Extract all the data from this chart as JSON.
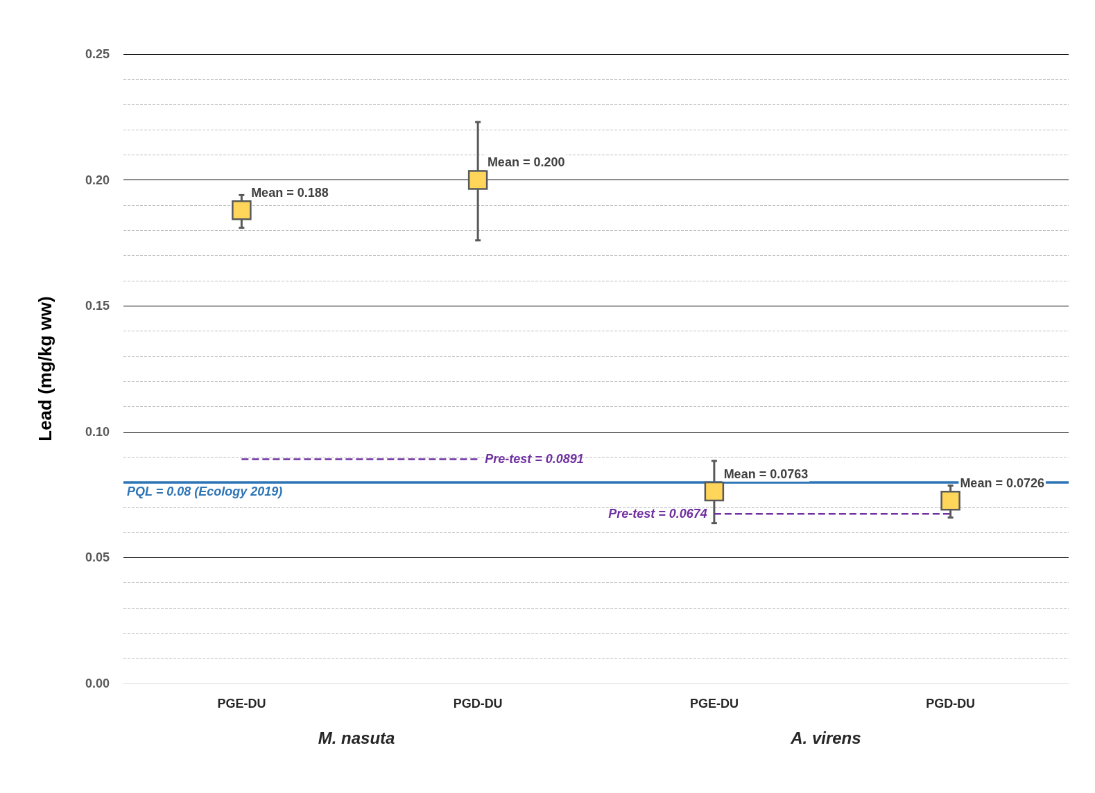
{
  "chart_data": {
    "type": "scatter",
    "ylabel": "Lead (mg/kg ww)",
    "categories": [
      "PGE-DU",
      "PGD-DU",
      "PGE-DU",
      "PGD-DU"
    ],
    "series": [
      {
        "marker": "square",
        "color": "#ffd65a",
        "values": [
          0.188,
          0.2,
          0.0763,
          0.0726
        ],
        "errors": [
          [
            0.181,
            0.194
          ],
          [
            0.176,
            0.223
          ],
          [
            0.0637,
            0.0884
          ],
          [
            0.0659,
            0.0786
          ]
        ],
        "value_labels": [
          "Mean = 0.188",
          "Mean = 0.200",
          "Mean = 0.0763",
          "Mean = 0.0726"
        ]
      },
      {
        "type": "line",
        "name": "Pre-test = 0.0891",
        "color": "#7030a0",
        "line_style": "dashed",
        "values": [
          0.0891,
          0.0891,
          null,
          null
        ]
      },
      {
        "type": "line",
        "name": "Pre-test = 0.0674",
        "color": "#7030a0",
        "line_style": "dashed",
        "values": [
          null,
          null,
          0.0674,
          0.0674
        ]
      }
    ],
    "ref_lines": [
      {
        "axis": "y",
        "value": 0.08,
        "label": "PQL = 0.08 (Ecology 2019)",
        "color": "#2e75b6",
        "line_style": "solid"
      }
    ],
    "annotations": [
      "M. nasuta",
      "A. virens"
    ],
    "ylim": [
      0,
      0.25
    ],
    "yticks": [
      {
        "value": 0,
        "label": "0.00"
      },
      {
        "value": 0.05,
        "label": "0.05"
      },
      {
        "value": 0.1,
        "label": "0.10"
      },
      {
        "value": 0.15,
        "label": "0.15"
      },
      {
        "value": 0.2,
        "label": "0.20"
      },
      {
        "value": 0.25,
        "label": "0.25"
      }
    ],
    "grid": "y",
    "legend": false
  }
}
